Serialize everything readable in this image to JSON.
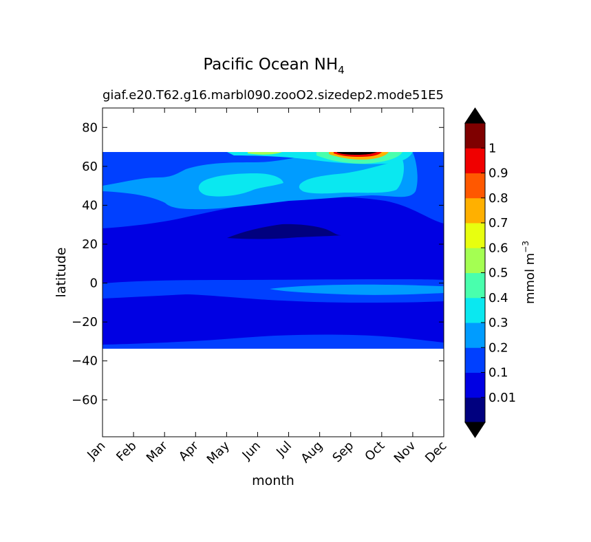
{
  "chart_data": {
    "type": "heatmap",
    "title": "Pacific Ocean NH",
    "title_subscript": "4",
    "subtitle_left": "giaf.e20.T62.g16.marbl090.zooO2.sizedep2.mode5",
    "subtitle_right": "1E5",
    "xlabel": "month",
    "ylabel": "latitude",
    "xticks": [
      "Jan",
      "Feb",
      "Mar",
      "Apr",
      "May",
      "Jun",
      "Jul",
      "Aug",
      "Sep",
      "Oct",
      "Nov",
      "Dec"
    ],
    "xlim": [
      1,
      12
    ],
    "yticks": [
      80,
      60,
      40,
      20,
      0,
      -20,
      -40,
      -60
    ],
    "yticks_text": [
      "80",
      "60",
      "40",
      "20",
      "0",
      "−20",
      "−40",
      "−60"
    ],
    "ylim": [
      -79,
      90
    ],
    "data_lat_range": [
      -34,
      67
    ],
    "colorbar": {
      "label": "mmol m",
      "label_superscript": "−3",
      "levels": [
        0,
        0.01,
        0.1,
        0.2,
        0.3,
        0.4,
        0.5,
        0.6,
        0.7,
        0.8,
        0.9,
        1,
        1.1
      ],
      "tick_labels": [
        "0.01",
        "0.1",
        "0.2",
        "0.3",
        "0.4",
        "0.5",
        "0.6",
        "0.7",
        "0.8",
        "0.9",
        "1"
      ],
      "colors": [
        "#00007f",
        "#0000e3",
        "#0040ff",
        "#009cff",
        "#0ae8f0",
        "#49ffad",
        "#a4ff52",
        "#e8ff0f",
        "#ffb000",
        "#ff5800",
        "#f00000",
        "#7f0000"
      ],
      "extend_low_color": "#000000",
      "extend_high_color": "#000000"
    }
  }
}
